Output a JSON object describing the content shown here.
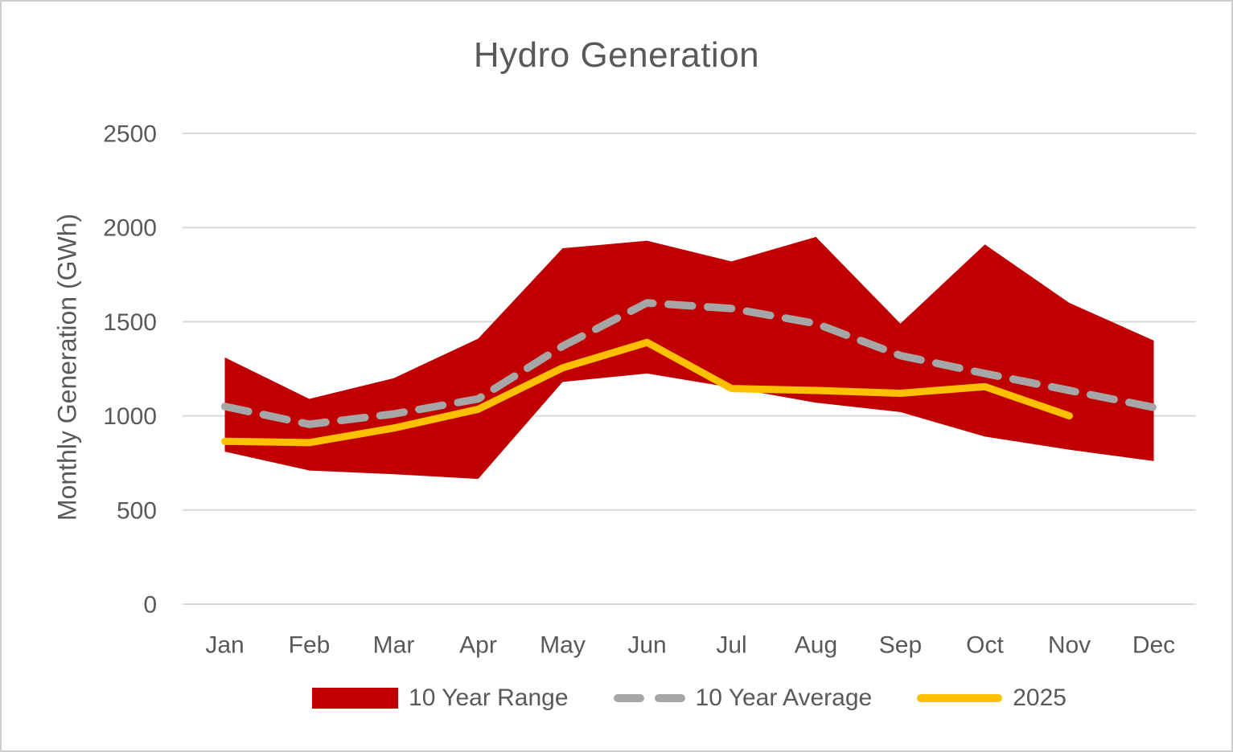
{
  "chart_data": {
    "type": "area",
    "title": "Hydro Generation",
    "xlabel": "",
    "ylabel": "Monthly Generation (GWh)",
    "ylim": [
      0,
      2500
    ],
    "ytick_interval": 500,
    "yticks": [
      0,
      500,
      1000,
      1500,
      2000,
      2500
    ],
    "grid": true,
    "legend_position": "bottom",
    "categories": [
      "Jan",
      "Feb",
      "Mar",
      "Apr",
      "May",
      "Jun",
      "Jul",
      "Aug",
      "Sep",
      "Oct",
      "Nov",
      "Dec"
    ],
    "series": [
      {
        "name": "10 Year Range (max)",
        "role": "band-upper",
        "values": [
          1310,
          1090,
          1200,
          1410,
          1890,
          1930,
          1820,
          1950,
          1490,
          1910,
          1600,
          1400
        ]
      },
      {
        "name": "10 Year Range (min)",
        "role": "band-lower",
        "values": [
          810,
          710,
          690,
          665,
          1180,
          1225,
          1150,
          1070,
          1020,
          890,
          820,
          760
        ]
      },
      {
        "name": "10 Year Average",
        "role": "dashed-line",
        "values": [
          1050,
          955,
          1010,
          1090,
          1370,
          1600,
          1570,
          1490,
          1320,
          1225,
          1135,
          1045
        ]
      },
      {
        "name": "2025",
        "role": "solid-line",
        "values": [
          865,
          858,
          935,
          1035,
          1255,
          1390,
          1145,
          1135,
          1120,
          1155,
          1000
        ]
      }
    ]
  },
  "legend": {
    "items": [
      {
        "label": "10 Year Range"
      },
      {
        "label": "10 Year Average"
      },
      {
        "label": "2025"
      }
    ]
  },
  "colors": {
    "band": "#C00000",
    "average": "#A6A6A6",
    "line_2025": "#FFC000",
    "text": "#595959",
    "grid": "#D9D9D9",
    "border": "#CDCDCD"
  }
}
